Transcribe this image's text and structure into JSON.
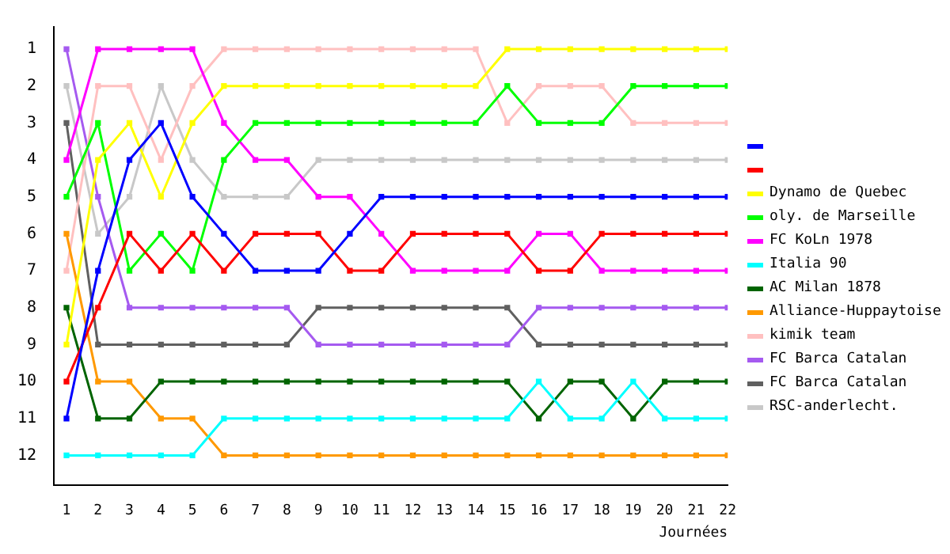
{
  "chart_data": {
    "type": "line",
    "xlabel": "Journées",
    "x": [
      1,
      2,
      3,
      4,
      5,
      6,
      7,
      8,
      9,
      10,
      11,
      12,
      13,
      14,
      15,
      16,
      17,
      18,
      19,
      20,
      21,
      22
    ],
    "xlim": [
      0.6,
      22
    ],
    "xticks": [
      1,
      2,
      3,
      4,
      5,
      6,
      7,
      8,
      9,
      10,
      11,
      12,
      13,
      14,
      15,
      16,
      17,
      18,
      19,
      20,
      21,
      22
    ],
    "ylim": [
      12.8,
      0.4
    ],
    "yticks": [
      1,
      2,
      3,
      4,
      5,
      6,
      7,
      8,
      9,
      10,
      11,
      12
    ],
    "grid": false,
    "legend": "right",
    "marker": "square",
    "line_style": "solid",
    "series": [
      {
        "color": "#0000ff",
        "values": [
          11,
          7,
          4,
          3,
          5,
          6,
          7,
          7,
          7,
          6,
          5,
          5,
          5,
          5,
          5,
          5,
          5,
          5,
          5,
          5,
          5,
          5
        ]
      },
      {
        "color": "#ff0000",
        "values": [
          10,
          8,
          6,
          7,
          6,
          7,
          6,
          6,
          6,
          7,
          7,
          6,
          6,
          6,
          6,
          7,
          7,
          6,
          6,
          6,
          6,
          6
        ]
      },
      {
        "name": "Dynamo de Quebec",
        "color": "#ffff00",
        "values": [
          9,
          4,
          3,
          5,
          3,
          2,
          2,
          2,
          2,
          2,
          2,
          2,
          2,
          2,
          1,
          1,
          1,
          1,
          1,
          1,
          1,
          1
        ]
      },
      {
        "name": "oly. de Marseille",
        "color": "#00ff00",
        "values": [
          5,
          3,
          7,
          6,
          7,
          4,
          3,
          3,
          3,
          3,
          3,
          3,
          3,
          3,
          2,
          3,
          3,
          3,
          2,
          2,
          2,
          2
        ]
      },
      {
        "name": "FC KoLn 1978",
        "color": "#ff00ff",
        "values": [
          4,
          1,
          1,
          1,
          1,
          3,
          4,
          4,
          5,
          5,
          6,
          7,
          7,
          7,
          7,
          6,
          6,
          7,
          7,
          7,
          7,
          7
        ]
      },
      {
        "name": "Italia 90",
        "color": "#00ffff",
        "values": [
          12,
          12,
          12,
          12,
          12,
          11,
          11,
          11,
          11,
          11,
          11,
          11,
          11,
          11,
          11,
          10,
          11,
          11,
          10,
          11,
          11,
          11
        ]
      },
      {
        "name": "AC Milan 1878",
        "color": "#006400",
        "values": [
          8,
          11,
          11,
          10,
          10,
          10,
          10,
          10,
          10,
          10,
          10,
          10,
          10,
          10,
          10,
          11,
          10,
          10,
          11,
          10,
          10,
          10
        ]
      },
      {
        "name": "Alliance-Huppaytoise",
        "color": "#ff9900",
        "values": [
          6,
          10,
          10,
          11,
          11,
          12,
          12,
          12,
          12,
          12,
          12,
          12,
          12,
          12,
          12,
          12,
          12,
          12,
          12,
          12,
          12,
          12
        ]
      },
      {
        "name": "kimik team",
        "color": "#ffc0c0",
        "values": [
          7,
          2,
          2,
          4,
          2,
          1,
          1,
          1,
          1,
          1,
          1,
          1,
          1,
          1,
          3,
          2,
          2,
          2,
          3,
          3,
          3,
          3
        ]
      },
      {
        "name": "FC Barca Catalan",
        "color": "#a55af0",
        "values": [
          1,
          5,
          8,
          8,
          8,
          8,
          8,
          8,
          9,
          9,
          9,
          9,
          9,
          9,
          9,
          8,
          8,
          8,
          8,
          8,
          8,
          8
        ]
      },
      {
        "name": "FC Barca Catalan",
        "color": "#606060",
        "values": [
          3,
          9,
          9,
          9,
          9,
          9,
          9,
          9,
          8,
          8,
          8,
          8,
          8,
          8,
          8,
          9,
          9,
          9,
          9,
          9,
          9,
          9
        ]
      },
      {
        "name": "RSC-anderlecht.",
        "color": "#c8c8c8",
        "values": [
          2,
          6,
          5,
          2,
          4,
          5,
          5,
          5,
          4,
          4,
          4,
          4,
          4,
          4,
          4,
          4,
          4,
          4,
          4,
          4,
          4,
          4
        ]
      }
    ]
  }
}
